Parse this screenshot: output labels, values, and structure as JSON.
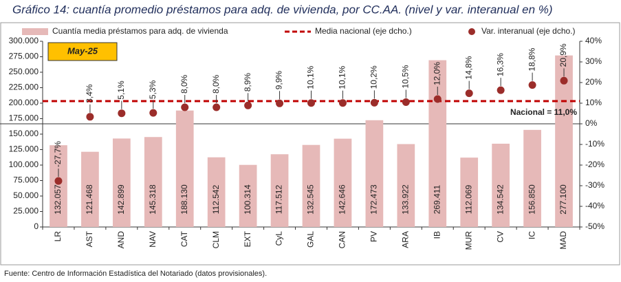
{
  "chart_data": {
    "type": "bar",
    "title": "Gráfico 14: cuantía promedio préstamos para adq. de vivienda, por CC.AA. (nivel y var. interanual en %)",
    "annotation": "May-25",
    "source": "Fuente: Centro de Información Estadística del Notariado (datos provisionales).",
    "categories": [
      "LR",
      "AST",
      "AND",
      "NAV",
      "CAT",
      "CLM",
      "EXT",
      "CyL",
      "GAL",
      "CAN",
      "PV",
      "ARA",
      "IB",
      "MUR",
      "CV",
      "IC",
      "MAD"
    ],
    "series": [
      {
        "name": "Cuantía media préstamos para adq. de vivienda",
        "type": "bar",
        "color": "#e6b9b8",
        "values": [
          132057,
          121468,
          142899,
          145318,
          188130,
          112542,
          100314,
          117512,
          132545,
          142646,
          172473,
          133922,
          269411,
          112069,
          134542,
          156850,
          277100
        ],
        "value_labels": [
          "132.057",
          "121.468",
          "142.899",
          "145.318",
          "188.130",
          "112.542",
          "100.314",
          "117.512",
          "132.545",
          "142.646",
          "172.473",
          "133.922",
          "269.411",
          "112.069",
          "134.542",
          "156.850",
          "277.100"
        ]
      },
      {
        "name": "Var. interanual (eje dcho.)",
        "type": "scatter",
        "axis": "y2",
        "color": "#9b2d2a",
        "values": [
          -27.7,
          3.4,
          5.1,
          5.3,
          8.0,
          8.0,
          8.9,
          9.9,
          10.1,
          10.1,
          10.2,
          10.5,
          12.0,
          14.8,
          16.3,
          18.8,
          20.9
        ],
        "value_labels": [
          "-27,7%",
          "3,4%",
          "5,1%",
          "5,3%",
          "8,0%",
          "8,0%",
          "8,9%",
          "9,9%",
          "10,1%",
          "10,1%",
          "10,2%",
          "10,5%",
          "12,0%",
          "14,8%",
          "16,3%",
          "18,8%",
          "20,9%"
        ]
      }
    ],
    "reference_line": {
      "name": "Media nacional (eje dcho.)",
      "axis": "y2",
      "color": "#c00000",
      "value": 11.0,
      "label": "Nacional = 11,0%"
    },
    "ylim": [
      0,
      300000
    ],
    "yticks": [
      {
        "value": 0,
        "label": "0"
      },
      {
        "value": 25000,
        "label": "25.000"
      },
      {
        "value": 50000,
        "label": "50.000"
      },
      {
        "value": 75000,
        "label": "75.000"
      },
      {
        "value": 100000,
        "label": "100.000"
      },
      {
        "value": 125000,
        "label": "125.000"
      },
      {
        "value": 150000,
        "label": "150.000"
      },
      {
        "value": 175000,
        "label": "175.000"
      },
      {
        "value": 200000,
        "label": "200.000"
      },
      {
        "value": 225000,
        "label": "225.000"
      },
      {
        "value": 250000,
        "label": "250.000"
      },
      {
        "value": 275000,
        "label": "275.000"
      },
      {
        "value": 300000,
        "label": "300.000"
      }
    ],
    "y2lim": [
      -50,
      40
    ],
    "y2ticks": [
      {
        "value": -50,
        "label": "-50%"
      },
      {
        "value": -40,
        "label": "-40%"
      },
      {
        "value": -30,
        "label": "-30%"
      },
      {
        "value": -20,
        "label": "-20%"
      },
      {
        "value": -10,
        "label": "-10%"
      },
      {
        "value": 0,
        "label": "0%"
      },
      {
        "value": 10,
        "label": "10%"
      },
      {
        "value": 20,
        "label": "20%"
      },
      {
        "value": 30,
        "label": "30%"
      },
      {
        "value": 40,
        "label": "40%"
      }
    ],
    "grid": false
  }
}
